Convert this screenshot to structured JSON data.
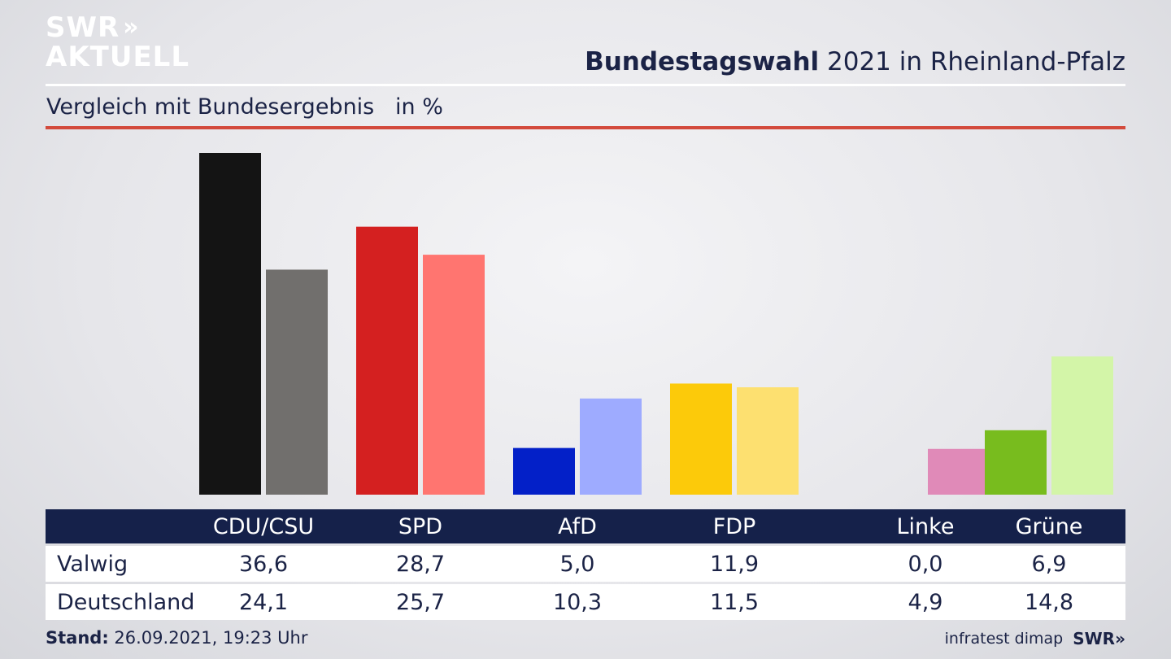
{
  "brand": {
    "line1": "SWR",
    "line2": "AKTUELL",
    "arrows": "»"
  },
  "header": {
    "title_bold": "Bundestagswahl",
    "title_rest": " 2021 in Rheinland-Pfalz",
    "subtitle": "Vergleich mit Bundesergebnis   in %"
  },
  "footer": {
    "stand_label": "Stand:",
    "stand_value": " 26.09.2021, 19:23 Uhr",
    "source": "infratest dimap",
    "source_brand": "SWR»"
  },
  "chart_data": {
    "type": "bar",
    "categories": [
      "CDU/CSU",
      "SPD",
      "AfD",
      "FDP",
      "Linke",
      "Grüne"
    ],
    "series": [
      {
        "name": "Valwig",
        "values": [
          36.6,
          28.7,
          5.0,
          11.9,
          0.0,
          6.9
        ],
        "labels": [
          "36,6",
          "28,7",
          "5,0",
          "11,9",
          "0,0",
          "6,9"
        ],
        "colors": [
          "#141414",
          "#d42020",
          "#0320c8",
          "#fcca0a",
          "#b0306e",
          "#78bc1e"
        ]
      },
      {
        "name": "Deutschland",
        "values": [
          24.1,
          25.7,
          10.3,
          11.5,
          4.9,
          14.8
        ],
        "labels": [
          "24,1",
          "25,7",
          "10,3",
          "11,5",
          "4,9",
          "14,8"
        ],
        "colors": [
          "#716f6d",
          "#ff7570",
          "#9eabff",
          "#fde070",
          "#e08ab8",
          "#d3f5a8"
        ]
      }
    ],
    "ylim": [
      0,
      36.6
    ]
  }
}
